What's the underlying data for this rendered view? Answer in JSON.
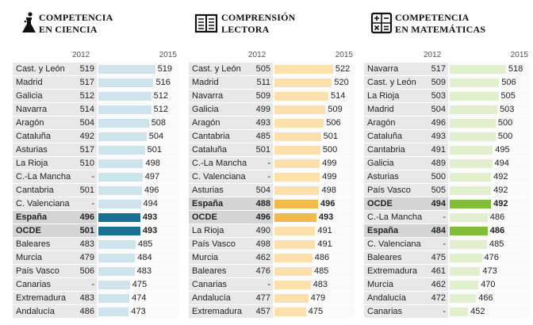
{
  "chart_data": [
    {
      "type": "bar",
      "title": [
        "COMPETENCIA",
        "EN CIENCIA"
      ],
      "icon": "flask-icon",
      "year_labels": [
        "2012",
        "2015"
      ],
      "xlim": [
        420,
        525
      ],
      "colors": {
        "normal": "#cfe3ed",
        "highlight": "#1a6e92"
      },
      "rows": [
        {
          "name": "Cast. y León",
          "v2012": "519",
          "v2015": 519,
          "highlight": false
        },
        {
          "name": "Madrid",
          "v2012": "517",
          "v2015": 516,
          "highlight": false
        },
        {
          "name": "Galicia",
          "v2012": "512",
          "v2015": 512,
          "highlight": false
        },
        {
          "name": "Navarra",
          "v2012": "514",
          "v2015": 512,
          "highlight": false
        },
        {
          "name": "Aragón",
          "v2012": "504",
          "v2015": 508,
          "highlight": false
        },
        {
          "name": "Cataluña",
          "v2012": "492",
          "v2015": 504,
          "highlight": false
        },
        {
          "name": "Asturias",
          "v2012": "517",
          "v2015": 501,
          "highlight": false
        },
        {
          "name": "La Rioja",
          "v2012": "510",
          "v2015": 498,
          "highlight": false
        },
        {
          "name": "C.-La Mancha",
          "v2012": "-",
          "v2015": 497,
          "highlight": false
        },
        {
          "name": "Cantabria",
          "v2012": "501",
          "v2015": 496,
          "highlight": false
        },
        {
          "name": "C. Valenciana",
          "v2012": "-",
          "v2015": 494,
          "highlight": false
        },
        {
          "name": "España",
          "v2012": "496",
          "v2015": 493,
          "highlight": true
        },
        {
          "name": "OCDE",
          "v2012": "501",
          "v2015": 493,
          "highlight": true
        },
        {
          "name": "Baleares",
          "v2012": "483",
          "v2015": 485,
          "highlight": false
        },
        {
          "name": "Murcia",
          "v2012": "479",
          "v2015": 484,
          "highlight": false
        },
        {
          "name": "País Vasco",
          "v2012": "506",
          "v2015": 483,
          "highlight": false
        },
        {
          "name": "Canarias",
          "v2012": "-",
          "v2015": 475,
          "highlight": false
        },
        {
          "name": "Extremadura",
          "v2012": "483",
          "v2015": 474,
          "highlight": false
        },
        {
          "name": "Andalucía",
          "v2012": "486",
          "v2015": 473,
          "highlight": false
        }
      ]
    },
    {
      "type": "bar",
      "title": [
        "COMPRENSIÓN",
        "LECTORA"
      ],
      "icon": "book-icon",
      "year_labels": [
        "2012",
        "2015"
      ],
      "xlim": [
        420,
        525
      ],
      "colors": {
        "normal": "#fbe0ad",
        "highlight": "#f2b94c"
      },
      "rows": [
        {
          "name": "Cast. y León",
          "v2012": "505",
          "v2015": 522,
          "highlight": false
        },
        {
          "name": "Madrid",
          "v2012": "511",
          "v2015": 520,
          "highlight": false
        },
        {
          "name": "Navarra",
          "v2012": "509",
          "v2015": 514,
          "highlight": false
        },
        {
          "name": "Galicia",
          "v2012": "499",
          "v2015": 509,
          "highlight": false
        },
        {
          "name": "Aragón",
          "v2012": "493",
          "v2015": 506,
          "highlight": false
        },
        {
          "name": "Cantabria",
          "v2012": "485",
          "v2015": 501,
          "highlight": false
        },
        {
          "name": "Cataluña",
          "v2012": "501",
          "v2015": 500,
          "highlight": false
        },
        {
          "name": "C.-La Mancha",
          "v2012": "-",
          "v2015": 499,
          "highlight": false
        },
        {
          "name": "C. Valenciana",
          "v2012": "-",
          "v2015": 499,
          "highlight": false
        },
        {
          "name": "Asturias",
          "v2012": "504",
          "v2015": 498,
          "highlight": false
        },
        {
          "name": "España",
          "v2012": "488",
          "v2015": 496,
          "highlight": true
        },
        {
          "name": "OCDE",
          "v2012": "496",
          "v2015": 493,
          "highlight": true
        },
        {
          "name": "La Rioja",
          "v2012": "490",
          "v2015": 491,
          "highlight": false
        },
        {
          "name": "País Vasco",
          "v2012": "498",
          "v2015": 491,
          "highlight": false
        },
        {
          "name": "Murcia",
          "v2012": "462",
          "v2015": 486,
          "highlight": false
        },
        {
          "name": "Baleares",
          "v2012": "476",
          "v2015": 485,
          "highlight": false
        },
        {
          "name": "Canarias",
          "v2012": "-",
          "v2015": 483,
          "highlight": false
        },
        {
          "name": "Andalucía",
          "v2012": "477",
          "v2015": 479,
          "highlight": false
        },
        {
          "name": "Extremadura",
          "v2012": "457",
          "v2015": 475,
          "highlight": false
        }
      ]
    },
    {
      "type": "bar",
      "title": [
        "COMPETENCIA",
        "EN MATEMÁTICAS"
      ],
      "icon": "calculator-icon",
      "year_labels": [
        "2012",
        "2015"
      ],
      "xlim": [
        420,
        525
      ],
      "colors": {
        "normal": "#e1efcf",
        "highlight": "#82bd3a"
      },
      "rows": [
        {
          "name": "Navarra",
          "v2012": "517",
          "v2015": 518,
          "highlight": false
        },
        {
          "name": "Cast. y León",
          "v2012": "509",
          "v2015": 506,
          "highlight": false
        },
        {
          "name": "La Rioja",
          "v2012": "503",
          "v2015": 505,
          "highlight": false
        },
        {
          "name": "Madrid",
          "v2012": "504",
          "v2015": 503,
          "highlight": false
        },
        {
          "name": "Aragón",
          "v2012": "496",
          "v2015": 500,
          "highlight": false
        },
        {
          "name": "Cataluña",
          "v2012": "493",
          "v2015": 500,
          "highlight": false
        },
        {
          "name": "Cantabria",
          "v2012": "491",
          "v2015": 495,
          "highlight": false
        },
        {
          "name": "Galicia",
          "v2012": "489",
          "v2015": 494,
          "highlight": false
        },
        {
          "name": "Asturias",
          "v2012": "500",
          "v2015": 492,
          "highlight": false
        },
        {
          "name": "País Vasco",
          "v2012": "505",
          "v2015": 492,
          "highlight": false
        },
        {
          "name": "OCDE",
          "v2012": "494",
          "v2015": 492,
          "highlight": true
        },
        {
          "name": "C.-La Mancha",
          "v2012": "-",
          "v2015": 486,
          "highlight": false
        },
        {
          "name": "España",
          "v2012": "484",
          "v2015": 486,
          "highlight": true
        },
        {
          "name": "C. Valenciana",
          "v2012": "-",
          "v2015": 485,
          "highlight": false
        },
        {
          "name": "Baleares",
          "v2012": "475",
          "v2015": 476,
          "highlight": false
        },
        {
          "name": "Extremadura",
          "v2012": "461",
          "v2015": 473,
          "highlight": false
        },
        {
          "name": "Murcia",
          "v2012": "462",
          "v2015": 470,
          "highlight": false
        },
        {
          "name": "Andalucía",
          "v2012": "472",
          "v2015": 466,
          "highlight": false
        },
        {
          "name": "Canarias",
          "v2012": "-",
          "v2015": 452,
          "highlight": false
        }
      ]
    }
  ]
}
